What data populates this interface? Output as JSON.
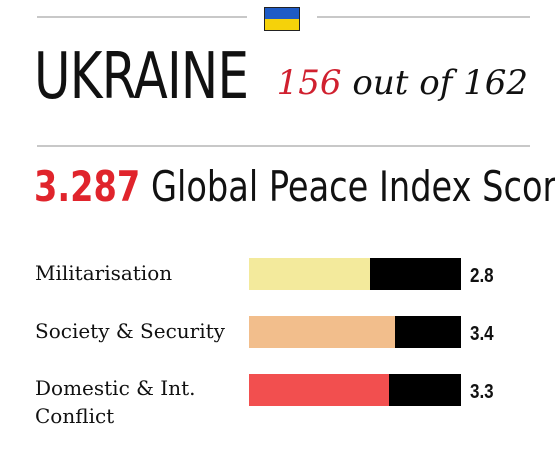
{
  "header": {
    "flag_icon": "ukraine-flag-icon",
    "flag_colors": {
      "top": "#1e5bc6",
      "bottom": "#f5d20a"
    }
  },
  "country": "UKRAINE",
  "rank": {
    "position": "156",
    "text": "out of 162"
  },
  "score": {
    "value": "3.287",
    "label": "Global Peace Index Score"
  },
  "domains": [
    {
      "label": "Militarisation",
      "value": "2.8",
      "fill_fraction": 0.57,
      "color": "#f3ea9c"
    },
    {
      "label": "Society & Security",
      "value": "3.4",
      "fill_fraction": 0.69,
      "color": "#f2be8c"
    },
    {
      "label": "Domestic & Int. Conflict",
      "value": "3.3",
      "fill_fraction": 0.66,
      "color": "#f24f4f"
    }
  ],
  "colors": {
    "accent_red": "#e0242c",
    "rule": "#c8c8c8",
    "bar_track": "#000000"
  }
}
